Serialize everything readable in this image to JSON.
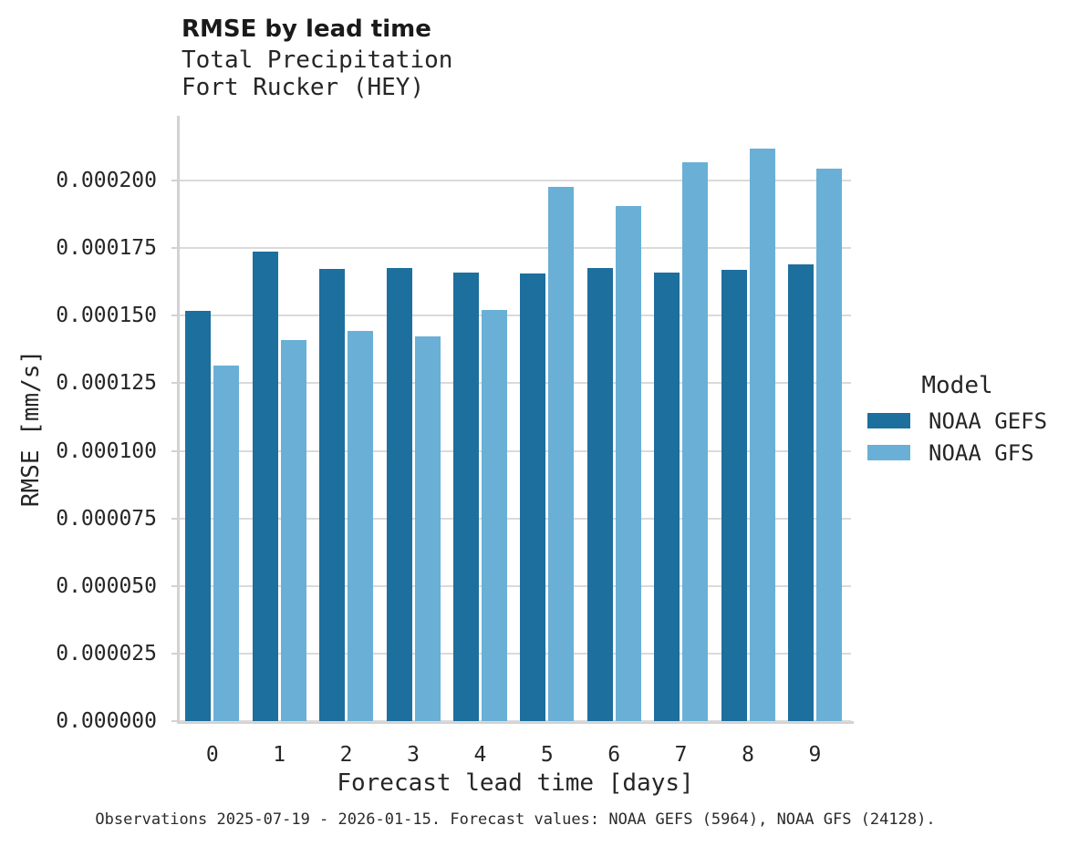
{
  "header": {
    "title": "RMSE by lead time",
    "subtitle_line1": "Total Precipitation",
    "subtitle_line2": "Fort Rucker (HEY)"
  },
  "caption": "Observations 2025-07-19 - 2026-01-15. Forecast values: NOAA GEFS (5964), NOAA GFS (24128).",
  "legend": {
    "title": "Model",
    "entries": [
      {
        "label": "NOAA GEFS",
        "color": "#1d6f9d"
      },
      {
        "label": "NOAA GFS",
        "color": "#6aafd6"
      }
    ]
  },
  "chart_data": {
    "type": "bar",
    "grouped": true,
    "title": "RMSE by lead time",
    "subtitle": [
      "Total Precipitation",
      "Fort Rucker (HEY)"
    ],
    "xlabel": "Forecast lead time [days]",
    "ylabel": "RMSE [mm/s]",
    "categories": [
      "0",
      "1",
      "2",
      "3",
      "4",
      "5",
      "6",
      "7",
      "8",
      "9"
    ],
    "series": [
      {
        "name": "NOAA GEFS",
        "color": "#1d6f9d",
        "values": [
          0.0001518,
          0.0001736,
          0.0001672,
          0.0001676,
          0.0001659,
          0.0001658,
          0.0001676,
          0.000166,
          0.0001669,
          0.000169
        ]
      },
      {
        "name": "NOAA GFS",
        "color": "#6aafd6",
        "values": [
          0.0001314,
          0.0001409,
          0.0001443,
          0.0001424,
          0.000152,
          0.0001977,
          0.0001906,
          0.0002069,
          0.000212,
          0.0002046
        ]
      }
    ],
    "ylim": [
      0,
      0.000224
    ],
    "yticks": [
      0,
      2.5e-05,
      5e-05,
      7.5e-05,
      0.0001,
      0.000125,
      0.00015,
      0.000175,
      0.0002
    ],
    "ytick_labels": [
      "0.000000",
      "0.000025",
      "0.000050",
      "0.000075",
      "0.000100",
      "0.000125",
      "0.000150",
      "0.000175",
      "0.000200"
    ],
    "grid": true,
    "legend_title": "Model",
    "legend_position": "right"
  },
  "colors": {
    "background": "#ffffff",
    "grid": "#dadada",
    "spine": "#d2d2d2",
    "text": "#262626",
    "gefs": "#1d6f9d",
    "gfs": "#6aafd6"
  }
}
